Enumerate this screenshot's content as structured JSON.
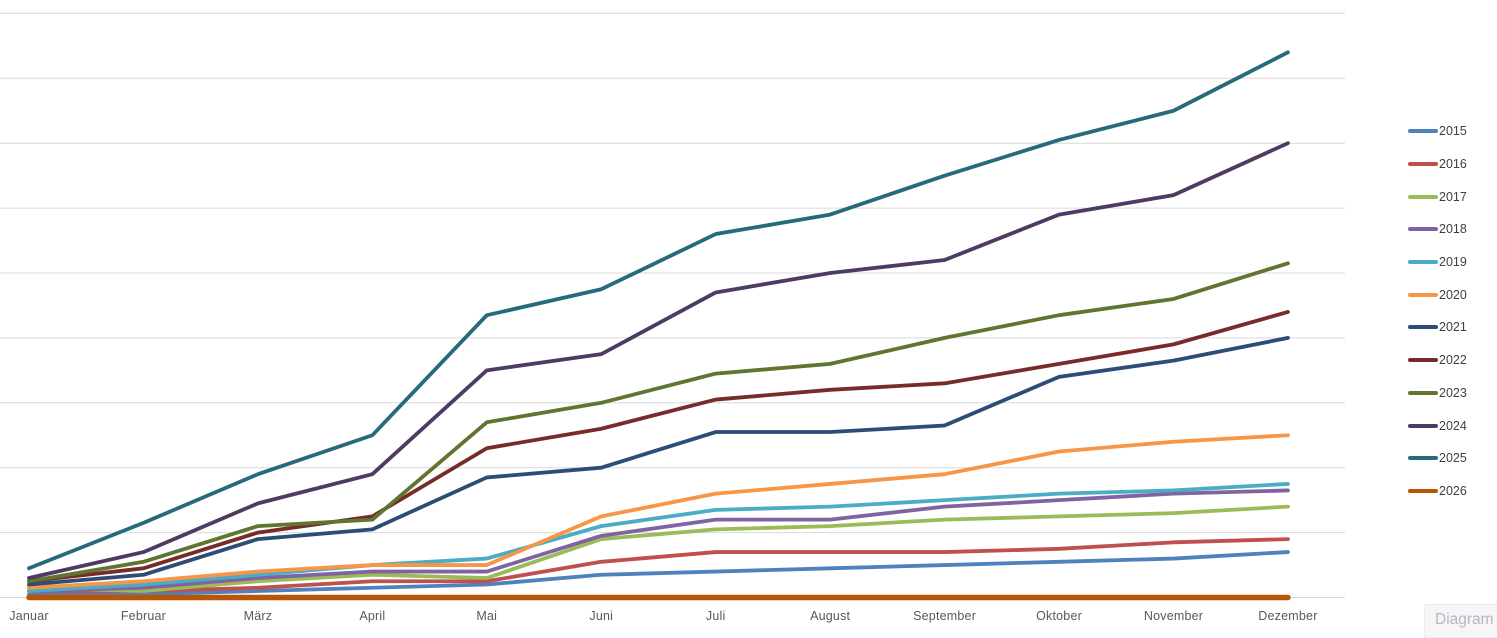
{
  "chart_data": {
    "type": "line",
    "title": "",
    "xlabel": "",
    "ylabel": "",
    "categories": [
      "Januar",
      "Februar",
      "März",
      "April",
      "Mai",
      "Juni",
      "Juli",
      "August",
      "September",
      "Oktober",
      "November",
      "Dezember"
    ],
    "series": [
      {
        "name": "2015",
        "color": "#4F81BD",
        "values": [
          0.05,
          0.05,
          0.1,
          0.15,
          0.2,
          0.35,
          0.4,
          0.45,
          0.5,
          0.55,
          0.6,
          0.7
        ]
      },
      {
        "name": "2016",
        "color": "#C0504D",
        "values": [
          0.1,
          0.1,
          0.15,
          0.25,
          0.25,
          0.55,
          0.7,
          0.7,
          0.7,
          0.75,
          0.85,
          0.9
        ]
      },
      {
        "name": "2017",
        "color": "#9BBB59",
        "values": [
          0.15,
          0.1,
          0.25,
          0.35,
          0.3,
          0.9,
          1.05,
          1.1,
          1.2,
          1.25,
          1.3,
          1.4
        ]
      },
      {
        "name": "2018",
        "color": "#8064A2",
        "values": [
          0.1,
          0.15,
          0.3,
          0.4,
          0.4,
          0.95,
          1.2,
          1.2,
          1.4,
          1.5,
          1.6,
          1.65
        ]
      },
      {
        "name": "2019",
        "color": "#4BACC6",
        "values": [
          0.1,
          0.2,
          0.35,
          0.5,
          0.6,
          1.1,
          1.35,
          1.4,
          1.5,
          1.6,
          1.65,
          1.75
        ]
      },
      {
        "name": "2020",
        "color": "#F79646",
        "values": [
          0.15,
          0.25,
          0.4,
          0.5,
          0.5,
          1.25,
          1.6,
          1.75,
          1.9,
          2.25,
          2.4,
          2.5
        ]
      },
      {
        "name": "2021",
        "color": "#2C4D75",
        "values": [
          0.2,
          0.35,
          0.9,
          1.05,
          1.85,
          2.0,
          2.55,
          2.55,
          2.65,
          3.4,
          3.65,
          4.0
        ]
      },
      {
        "name": "2022",
        "color": "#772C2A",
        "values": [
          0.25,
          0.45,
          1.0,
          1.25,
          2.3,
          2.6,
          3.05,
          3.2,
          3.3,
          3.6,
          3.9,
          4.4
        ]
      },
      {
        "name": "2023",
        "color": "#5F7530",
        "values": [
          0.25,
          0.55,
          1.1,
          1.2,
          2.7,
          3.0,
          3.45,
          3.6,
          4.0,
          4.35,
          4.6,
          5.15
        ]
      },
      {
        "name": "2024",
        "color": "#4D3B62",
        "values": [
          0.3,
          0.7,
          1.45,
          1.9,
          3.5,
          3.75,
          4.7,
          5.0,
          5.2,
          5.9,
          6.2,
          7.0
        ]
      },
      {
        "name": "2025",
        "color": "#276A7C",
        "values": [
          0.45,
          1.15,
          1.9,
          2.5,
          4.35,
          4.75,
          5.6,
          5.9,
          6.5,
          7.05,
          7.5,
          8.4
        ]
      },
      {
        "name": "2026",
        "color": "#B65708",
        "values": [
          0.0,
          0.0,
          0.0,
          0.0,
          0.0,
          0.0,
          0.0,
          0.0,
          0.0,
          0.0,
          0.0,
          0.0
        ]
      }
    ],
    "ylim": [
      0,
      9
    ],
    "y_unit": "gridline units (no y-axis tick labels visible)",
    "grid": true,
    "gridline_count": 10,
    "legend_position": "right"
  },
  "footer": {
    "diagram_label": "Diagram"
  },
  "colors": {
    "gridline": "#d9d9d9",
    "axis_text": "#595959",
    "legend_text": "#404040"
  }
}
